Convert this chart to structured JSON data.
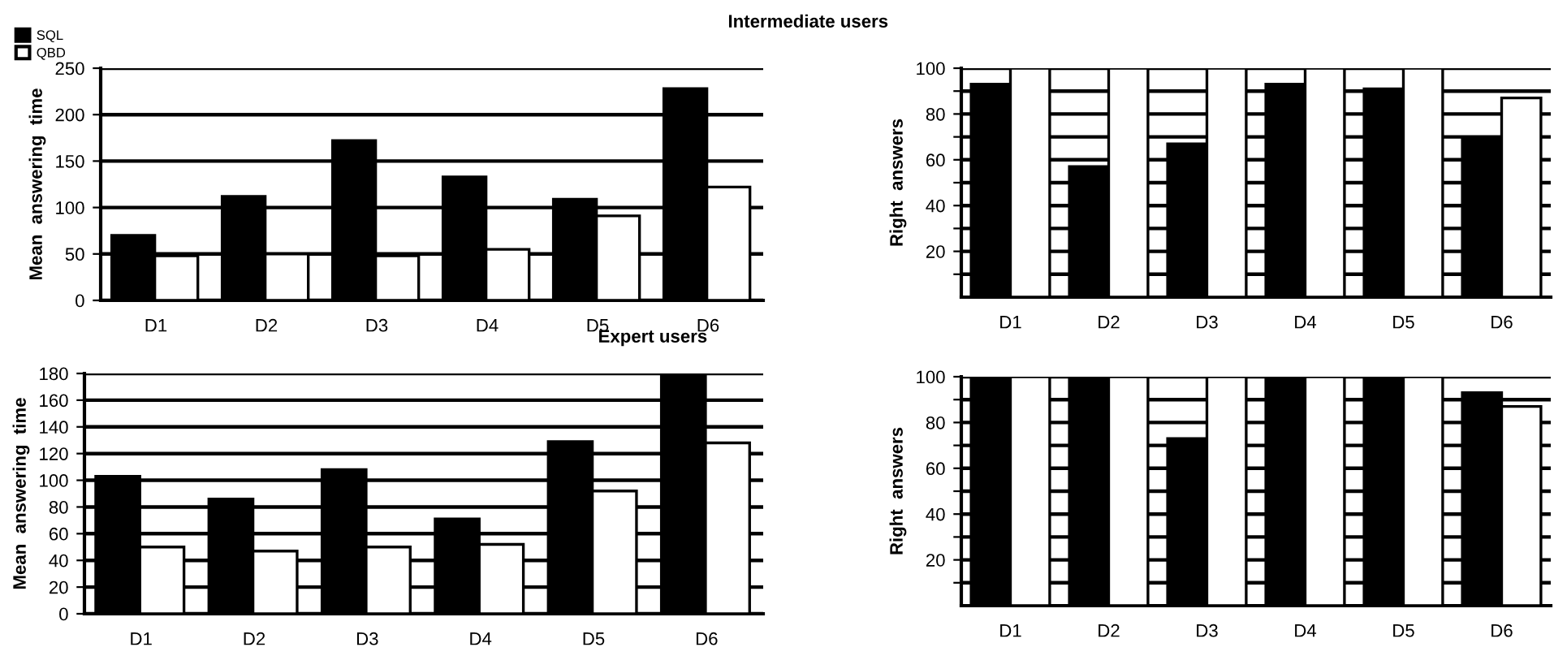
{
  "chart_data": [
    {
      "type": "bar",
      "title": "Intermediate users",
      "ylabel": "Mean  answering  time",
      "categories": [
        "D1",
        "D2",
        "D3",
        "D4",
        "D5",
        "D6"
      ],
      "ylim": [
        0,
        250
      ],
      "yticks": [
        0,
        50,
        100,
        150,
        200,
        250
      ],
      "grid": "y",
      "legend": "top left",
      "series": [
        {
          "name": "SQL",
          "color": "#000000",
          "values": [
            70,
            112,
            172,
            133,
            109,
            228
          ]
        },
        {
          "name": "QBD",
          "color": "#ffffff",
          "values": [
            48,
            50,
            48,
            55,
            91,
            122
          ]
        }
      ]
    },
    {
      "type": "bar",
      "ylabel": "Right  answers",
      "categories": [
        "D1",
        "D2",
        "D3",
        "D4",
        "D5",
        "D6"
      ],
      "ylim": [
        0,
        100
      ],
      "yticks": [
        {
          "value": 10,
          "label": null
        },
        20,
        {
          "value": 30,
          "label": null
        },
        40,
        {
          "value": 50,
          "label": null
        },
        60,
        {
          "value": 70,
          "label": null
        },
        80,
        {
          "value": 90,
          "label": null
        },
        100
      ],
      "grid": "y",
      "series": [
        {
          "color": "#000000",
          "values": [
            93,
            57,
            67,
            93,
            91,
            70
          ]
        },
        {
          "color": "#ffffff",
          "values": [
            100,
            100,
            100,
            100,
            100,
            87
          ]
        }
      ]
    },
    {
      "type": "bar",
      "title": "Expert users",
      "ylabel": "Mean  answering  time",
      "categories": [
        "D1",
        "D2",
        "D3",
        "D4",
        "D5",
        "D6"
      ],
      "ylim": [
        0,
        180
      ],
      "yticks": [
        0,
        20,
        40,
        60,
        80,
        100,
        120,
        140,
        160,
        180
      ],
      "grid": "y",
      "series": [
        {
          "color": "#000000",
          "values": [
            103,
            86,
            108,
            71,
            129,
            180
          ]
        },
        {
          "color": "#ffffff",
          "values": [
            50,
            47,
            50,
            52,
            92,
            128
          ]
        }
      ]
    },
    {
      "type": "bar",
      "ylabel": "Right  answers",
      "categories": [
        "D1",
        "D2",
        "D3",
        "D4",
        "D5",
        "D6"
      ],
      "ylim": [
        0,
        100
      ],
      "yticks": [
        {
          "value": 10,
          "label": null
        },
        20,
        {
          "value": 30,
          "label": null
        },
        40,
        {
          "value": 50,
          "label": null
        },
        60,
        {
          "value": 70,
          "label": null
        },
        80,
        {
          "value": 90,
          "label": null
        },
        100
      ],
      "grid": "y",
      "series": [
        {
          "color": "#000000",
          "values": [
            100,
            100,
            73,
            100,
            100,
            93
          ]
        },
        {
          "color": "#ffffff",
          "values": [
            100,
            100,
            100,
            100,
            100,
            87
          ]
        }
      ]
    }
  ]
}
